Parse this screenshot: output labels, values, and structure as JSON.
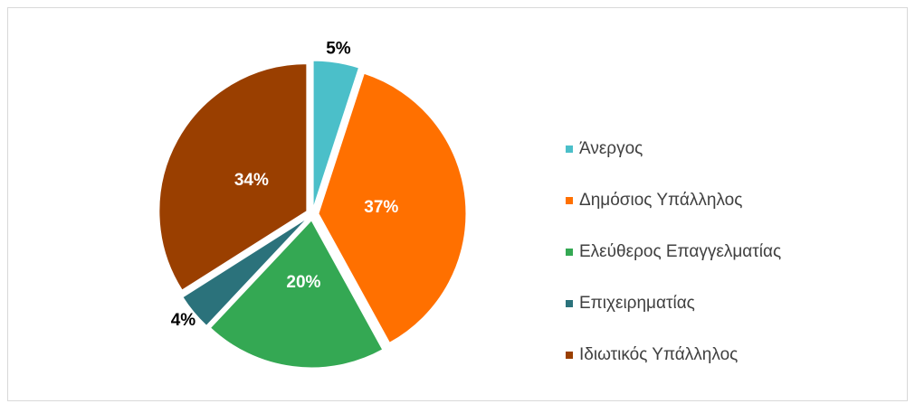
{
  "chart_data": {
    "type": "pie",
    "categories": [
      "Άνεργος",
      "Δημόσιος Υπάλληλος",
      "Ελεύθερος Επαγγελματίας",
      "Επιχειρηματίας",
      "Ιδιωτικός Υπάλληλος"
    ],
    "values": [
      5,
      37,
      20,
      4,
      34
    ],
    "value_labels": [
      "5%",
      "37%",
      "20%",
      "4%",
      "34%"
    ],
    "colors": [
      "#4bbfc9",
      "#ff7000",
      "#34a853",
      "#2b727b",
      "#9a3f00"
    ],
    "legend": "right"
  }
}
